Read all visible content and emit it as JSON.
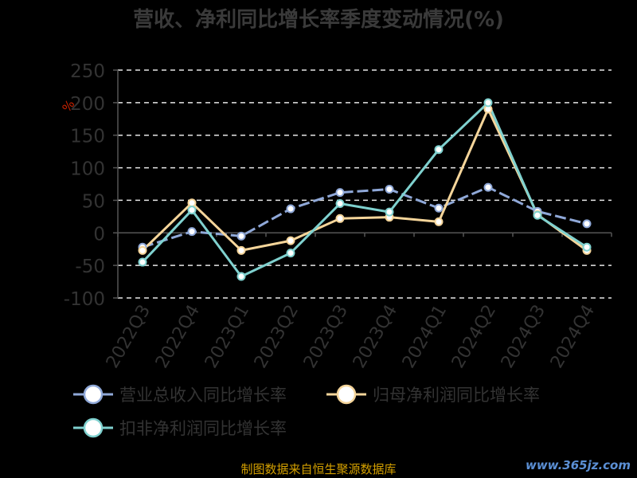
{
  "chart_data": {
    "type": "line",
    "title": "营收、净利同比增长率季度变动情况(%)",
    "ylabel": "%",
    "categories": [
      "2022Q3",
      "2022Q4",
      "2023Q1",
      "2023Q2",
      "2023Q3",
      "2023Q4",
      "2024Q1",
      "2024Q2",
      "2024Q3",
      "2024Q4"
    ],
    "ylim": [
      -100,
      250
    ],
    "yticks": [
      "250",
      "200",
      "150",
      "100",
      "50",
      "0",
      "-50",
      "-100"
    ],
    "grid": true,
    "legend_position": "bottom",
    "series": [
      {
        "name": "营业总收入同比增长率",
        "color": "#8fa8d8",
        "values": [
          -22,
          2,
          -5,
          37,
          62,
          67,
          38,
          70,
          33,
          14
        ]
      },
      {
        "name": "归母净利润同比增长率",
        "color": "#f5d59a",
        "values": [
          -27,
          46,
          -27,
          -12,
          22,
          24,
          17,
          190,
          28,
          -27
        ]
      },
      {
        "name": "扣非净利润同比增长率",
        "color": "#7fd1cf",
        "values": [
          -45,
          35,
          -67,
          -31,
          45,
          32,
          128,
          200,
          27,
          -22
        ]
      }
    ]
  },
  "source_note": "制图数据来自恒生聚源数据库",
  "watermark": "www.365jz.com"
}
